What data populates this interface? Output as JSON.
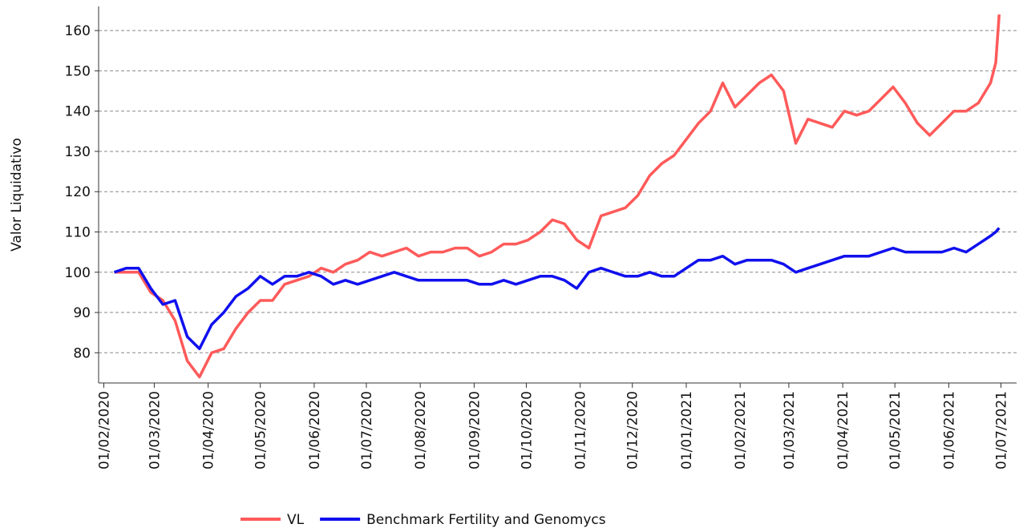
{
  "chart_data": {
    "type": "line",
    "y_label": "Valor Liquidativo",
    "x": [
      "07/02/2020",
      "14/02/2020",
      "21/02/2020",
      "28/02/2020",
      "06/03/2020",
      "13/03/2020",
      "20/03/2020",
      "27/03/2020",
      "03/04/2020",
      "10/04/2020",
      "17/04/2020",
      "24/04/2020",
      "01/05/2020",
      "08/05/2020",
      "15/05/2020",
      "22/05/2020",
      "29/05/2020",
      "05/06/2020",
      "12/06/2020",
      "19/06/2020",
      "26/06/2020",
      "03/07/2020",
      "10/07/2020",
      "17/07/2020",
      "24/07/2020",
      "31/07/2020",
      "07/08/2020",
      "14/08/2020",
      "21/08/2020",
      "28/08/2020",
      "04/09/2020",
      "11/09/2020",
      "18/09/2020",
      "25/09/2020",
      "02/10/2020",
      "09/10/2020",
      "16/10/2020",
      "23/10/2020",
      "30/10/2020",
      "06/11/2020",
      "13/11/2020",
      "20/11/2020",
      "27/11/2020",
      "04/12/2020",
      "11/12/2020",
      "18/12/2020",
      "25/12/2020",
      "01/01/2021",
      "08/01/2021",
      "15/01/2021",
      "22/01/2021",
      "29/01/2021",
      "05/02/2021",
      "12/02/2021",
      "19/02/2021",
      "26/02/2021",
      "05/03/2021",
      "12/03/2021",
      "19/03/2021",
      "26/03/2021",
      "02/04/2021",
      "09/04/2021",
      "16/04/2021",
      "23/04/2021",
      "30/04/2021",
      "07/05/2021",
      "14/05/2021",
      "21/05/2021",
      "28/05/2021",
      "04/06/2021",
      "11/06/2021",
      "18/06/2021",
      "25/06/2021",
      "28/06/2021",
      "30/06/2021"
    ],
    "series": [
      {
        "name": "VL",
        "color": "#ff5a5a",
        "values": [
          100,
          100,
          100,
          95,
          93,
          88,
          78,
          74,
          80,
          81,
          86,
          90,
          93,
          93,
          97,
          98,
          99,
          101,
          100,
          102,
          103,
          105,
          104,
          105,
          106,
          104,
          105,
          105,
          106,
          106,
          104,
          105,
          107,
          107,
          108,
          110,
          113,
          112,
          108,
          106,
          114,
          115,
          116,
          119,
          124,
          127,
          129,
          133,
          137,
          140,
          147,
          141,
          144,
          147,
          149,
          145,
          132,
          138,
          137,
          136,
          140,
          139,
          140,
          143,
          146,
          142,
          137,
          134,
          137,
          140,
          140,
          142,
          147,
          152,
          164
        ]
      },
      {
        "name": "Benchmark Fertility and Genomycs",
        "color": "#1010ee",
        "values": [
          100,
          101,
          101,
          96,
          92,
          93,
          84,
          81,
          87,
          90,
          94,
          96,
          99,
          97,
          99,
          99,
          100,
          99,
          97,
          98,
          97,
          98,
          99,
          100,
          99,
          98,
          98,
          98,
          98,
          98,
          97,
          97,
          98,
          97,
          98,
          99,
          99,
          98,
          96,
          100,
          101,
          100,
          99,
          99,
          100,
          99,
          99,
          101,
          103,
          103,
          104,
          102,
          103,
          103,
          103,
          102,
          100,
          101,
          102,
          103,
          104,
          104,
          104,
          105,
          106,
          105,
          105,
          105,
          105,
          106,
          105,
          107,
          109,
          110,
          111
        ]
      }
    ],
    "xlim": [
      "29/01/2020",
      "10/07/2021"
    ],
    "xticks": [
      "01/02/2020",
      "01/03/2020",
      "01/04/2020",
      "01/05/2020",
      "01/06/2020",
      "01/07/2020",
      "01/08/2020",
      "01/09/2020",
      "01/10/2020",
      "01/11/2020",
      "01/12/2020",
      "01/01/2021",
      "01/02/2021",
      "01/03/2021",
      "01/04/2021",
      "01/05/2021",
      "01/06/2021",
      "01/07/2021"
    ],
    "ylim": [
      72.5,
      166
    ],
    "yticks": [
      80,
      90,
      100,
      110,
      120,
      130,
      140,
      150,
      160
    ],
    "grid": true
  }
}
